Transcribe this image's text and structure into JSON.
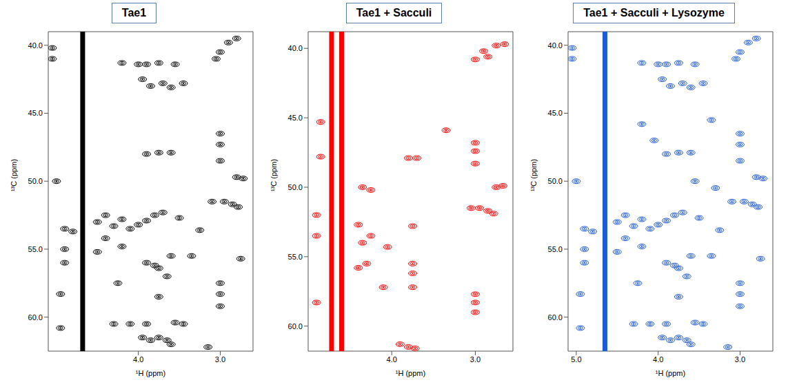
{
  "chart_data": [
    {
      "type": "scatter",
      "title": "Tae1",
      "x_label": "¹H (ppm)",
      "y_label": "¹³C (ppm)",
      "xlim": [
        5.1,
        2.6
      ],
      "ylim": [
        62.5,
        39
      ],
      "xticks": [
        {
          "value": 4,
          "label": "4.0"
        },
        {
          "value": 3,
          "label": "3.0"
        }
      ],
      "yticks": [
        {
          "value": 40,
          "label": "40.0"
        },
        {
          "value": 45,
          "label": "45.0"
        },
        {
          "value": 50,
          "label": "50.0"
        },
        {
          "value": 55,
          "label": "55.0"
        },
        {
          "value": 60,
          "label": "60.0"
        }
      ],
      "grid": false,
      "series": [
        {
          "type": "line",
          "color": "#000000",
          "x": [
            4.68,
            4.68
          ],
          "y": [
            39,
            62.5
          ]
        },
        {
          "type": "scatter",
          "marker": "contour",
          "color": "#000000",
          "x": [
            3.0,
            2.9,
            2.8,
            3.05,
            5.05,
            5.05,
            4.2,
            4.0,
            3.9,
            3.75,
            3.55,
            3.95,
            3.85,
            3.7,
            3.6,
            3.45,
            3.9,
            3.75,
            3.6,
            3.0,
            3.0,
            3.0,
            2.8,
            2.72,
            5.0,
            3.1,
            2.95,
            2.85,
            2.78,
            4.9,
            4.8,
            4.5,
            4.4,
            4.3,
            4.2,
            4.1,
            4.0,
            3.9,
            3.8,
            3.7,
            3.5,
            4.4,
            4.2,
            4.5,
            4.9,
            4.9,
            3.6,
            3.35,
            3.25,
            3.9,
            3.8,
            3.75,
            3.65,
            3.75,
            3.0,
            3.0,
            3.0,
            2.75,
            4.3,
            4.1,
            3.9,
            3.55,
            3.45,
            3.95,
            3.85,
            3.75,
            3.65,
            3.6,
            4.95,
            4.95,
            3.15,
            4.25
          ],
          "y": [
            40.5,
            39.8,
            39.5,
            41.0,
            40.2,
            41.0,
            41.3,
            41.4,
            41.4,
            41.3,
            41.4,
            42.5,
            43.0,
            42.8,
            43.1,
            42.8,
            48.0,
            47.9,
            47.9,
            47.3,
            48.5,
            46.5,
            49.7,
            49.8,
            50.0,
            51.5,
            51.5,
            51.7,
            51.9,
            53.5,
            53.7,
            53.0,
            52.5,
            53.3,
            52.8,
            53.5,
            53.2,
            52.9,
            52.5,
            52.3,
            52.7,
            54.2,
            54.8,
            55.2,
            55.0,
            56.0,
            55.5,
            55.5,
            53.6,
            56.0,
            56.2,
            56.4,
            57.0,
            58.5,
            57.5,
            58.3,
            59.2,
            55.7,
            60.5,
            60.5,
            60.5,
            60.4,
            60.5,
            61.5,
            61.7,
            61.5,
            61.7,
            62.0,
            58.3,
            60.8,
            62.2,
            57.5
          ]
        }
      ]
    },
    {
      "type": "scatter",
      "title": "Tae1 + Sacculi",
      "x_label": "¹H (ppm)",
      "y_label": "¹³C (ppm)",
      "xlim": [
        5.0,
        2.55
      ],
      "ylim": [
        61.8,
        38.8
      ],
      "xticks": [
        {
          "value": 4,
          "label": "4.0"
        },
        {
          "value": 3,
          "label": "3.0"
        }
      ],
      "yticks": [
        {
          "value": 40,
          "label": "40.0"
        },
        {
          "value": 45,
          "label": "45.0"
        },
        {
          "value": 50,
          "label": "50.0"
        },
        {
          "value": 55,
          "label": "55.0"
        },
        {
          "value": 60,
          "label": "60.0"
        }
      ],
      "grid": false,
      "series": [
        {
          "type": "line",
          "color": "#ff0000",
          "x": [
            4.6,
            4.6
          ],
          "y": [
            38.8,
            61.8
          ]
        },
        {
          "type": "line",
          "color": "#ff0000",
          "x": [
            4.72,
            4.72
          ],
          "y": [
            38.8,
            61.8
          ]
        },
        {
          "type": "scatter",
          "marker": "contour",
          "color": "#ff0000",
          "x": [
            3.0,
            2.85,
            2.75,
            2.65,
            2.9,
            3.35,
            3.8,
            3.7,
            3.0,
            3.0,
            3.0,
            2.75,
            2.67,
            4.35,
            4.25,
            3.05,
            2.95,
            2.85,
            2.78,
            4.4,
            4.25,
            4.35,
            4.3,
            4.4,
            3.75,
            4.05,
            4.1,
            3.75,
            3.75,
            3.75,
            3.0,
            3.0,
            3.0,
            3.8,
            3.72,
            3.9,
            4.9,
            4.9,
            4.9,
            4.85,
            4.85
          ],
          "y": [
            40.8,
            40.6,
            39.8,
            39.7,
            40.2,
            45.9,
            47.9,
            47.9,
            47.4,
            46.8,
            48.3,
            50.0,
            49.9,
            50.0,
            50.2,
            51.5,
            51.5,
            51.7,
            51.9,
            52.7,
            53.5,
            54.0,
            55.5,
            55.8,
            52.8,
            54.3,
            57.2,
            56.2,
            57.2,
            55.5,
            58.3,
            57.7,
            59.0,
            61.5,
            61.6,
            61.3,
            58.3,
            52.0,
            53.5,
            45.3,
            47.8
          ]
        }
      ]
    },
    {
      "type": "scatter",
      "title": "Tae1 + Sacculi + Lysozyme",
      "x_label": "¹H (ppm)",
      "y_label": "¹³C (ppm)",
      "xlim": [
        5.1,
        2.6
      ],
      "ylim": [
        62.5,
        39
      ],
      "xticks": [
        {
          "value": 5,
          "label": "5.0"
        },
        {
          "value": 4,
          "label": "4.0"
        },
        {
          "value": 3,
          "label": "3.0"
        }
      ],
      "yticks": [
        {
          "value": 40,
          "label": "40.0"
        },
        {
          "value": 45,
          "label": "45.0"
        },
        {
          "value": 50,
          "label": "50.0"
        },
        {
          "value": 55,
          "label": "55.0"
        },
        {
          "value": 60,
          "label": "60.0"
        }
      ],
      "grid": false,
      "series": [
        {
          "type": "line",
          "color": "#1f5bd6",
          "x": [
            4.65,
            4.65
          ],
          "y": [
            39,
            62.5
          ]
        },
        {
          "type": "scatter",
          "marker": "contour",
          "color": "#1f5bd6",
          "x": [
            3.0,
            2.9,
            2.8,
            3.05,
            5.05,
            5.05,
            4.2,
            4.0,
            3.9,
            3.75,
            3.55,
            3.95,
            3.85,
            3.7,
            3.6,
            3.45,
            3.9,
            3.75,
            3.6,
            3.0,
            3.0,
            3.0,
            2.8,
            2.72,
            5.0,
            3.1,
            2.95,
            2.85,
            2.78,
            4.9,
            4.8,
            4.5,
            4.4,
            4.3,
            4.2,
            4.1,
            4.0,
            3.9,
            3.8,
            3.7,
            3.5,
            4.4,
            4.2,
            4.5,
            4.9,
            4.9,
            3.6,
            3.35,
            3.25,
            3.9,
            3.8,
            3.75,
            3.65,
            3.75,
            3.0,
            3.0,
            3.0,
            2.75,
            4.3,
            4.1,
            3.9,
            3.55,
            3.45,
            3.95,
            3.85,
            3.75,
            3.65,
            3.6,
            4.95,
            4.95,
            3.15,
            4.25,
            4.05,
            4.2,
            3.35,
            3.55,
            3.3
          ],
          "y": [
            40.5,
            39.8,
            39.5,
            41.0,
            40.2,
            41.0,
            41.3,
            41.4,
            41.4,
            41.3,
            41.4,
            42.5,
            43.0,
            42.8,
            43.1,
            42.8,
            48.0,
            47.9,
            47.9,
            47.3,
            48.5,
            46.5,
            49.7,
            49.8,
            50.0,
            51.5,
            51.5,
            51.7,
            51.9,
            53.5,
            53.7,
            53.0,
            52.5,
            53.3,
            52.8,
            53.5,
            53.2,
            52.9,
            52.5,
            52.3,
            52.7,
            54.2,
            54.8,
            55.2,
            55.0,
            56.0,
            55.5,
            55.5,
            53.6,
            56.0,
            56.2,
            56.4,
            57.0,
            58.5,
            57.5,
            58.3,
            59.2,
            55.7,
            60.5,
            60.5,
            60.5,
            60.4,
            60.5,
            61.5,
            61.7,
            61.5,
            61.7,
            62.0,
            58.3,
            60.8,
            62.2,
            57.5,
            47.0,
            45.8,
            45.5,
            50.0,
            50.5
          ]
        }
      ]
    }
  ]
}
